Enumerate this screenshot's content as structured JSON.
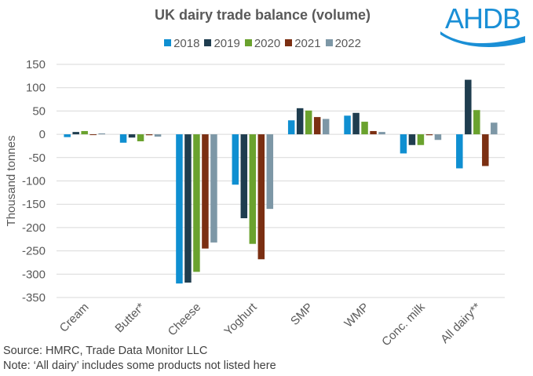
{
  "header": {
    "title": "UK dairy trade balance (volume)",
    "logo_text": "AHDB"
  },
  "footer": {
    "source": "Source: HMRC, Trade Data Monitor LLC",
    "note": "Note: ‘All dairy’ includes some products not listed here"
  },
  "chart_data": {
    "type": "bar",
    "title": "UK dairy trade balance (volume)",
    "xlabel": "",
    "ylabel": "Thousand tonnes",
    "ylim": [
      -350,
      150
    ],
    "yticks": [
      150,
      100,
      50,
      0,
      -50,
      -100,
      -150,
      -200,
      -250,
      -300,
      -350
    ],
    "grid": true,
    "legend_position": "top-center",
    "categories": [
      "Cream",
      "Butter*",
      "Cheese",
      "Yoghurt",
      "SMP",
      "WMP",
      "Conc. milk",
      "All dairy**"
    ],
    "series": [
      {
        "name": "2018",
        "color": "#0f8fd1",
        "values": [
          -6,
          -18,
          -320,
          -108,
          30,
          40,
          -41,
          -73
        ]
      },
      {
        "name": "2019",
        "color": "#1f3d4f",
        "values": [
          5,
          -7,
          -318,
          -180,
          56,
          46,
          -23,
          117
        ]
      },
      {
        "name": "2020",
        "color": "#6aa22e",
        "values": [
          7,
          -15,
          -295,
          -235,
          51,
          27,
          -23,
          52
        ]
      },
      {
        "name": "2021",
        "color": "#7b2f12",
        "values": [
          0,
          -2,
          -245,
          -268,
          37,
          7,
          -2,
          -68
        ]
      },
      {
        "name": "2022",
        "color": "#7d97a6",
        "values": [
          2,
          -5,
          -232,
          -160,
          33,
          5,
          -12,
          25
        ]
      }
    ]
  }
}
